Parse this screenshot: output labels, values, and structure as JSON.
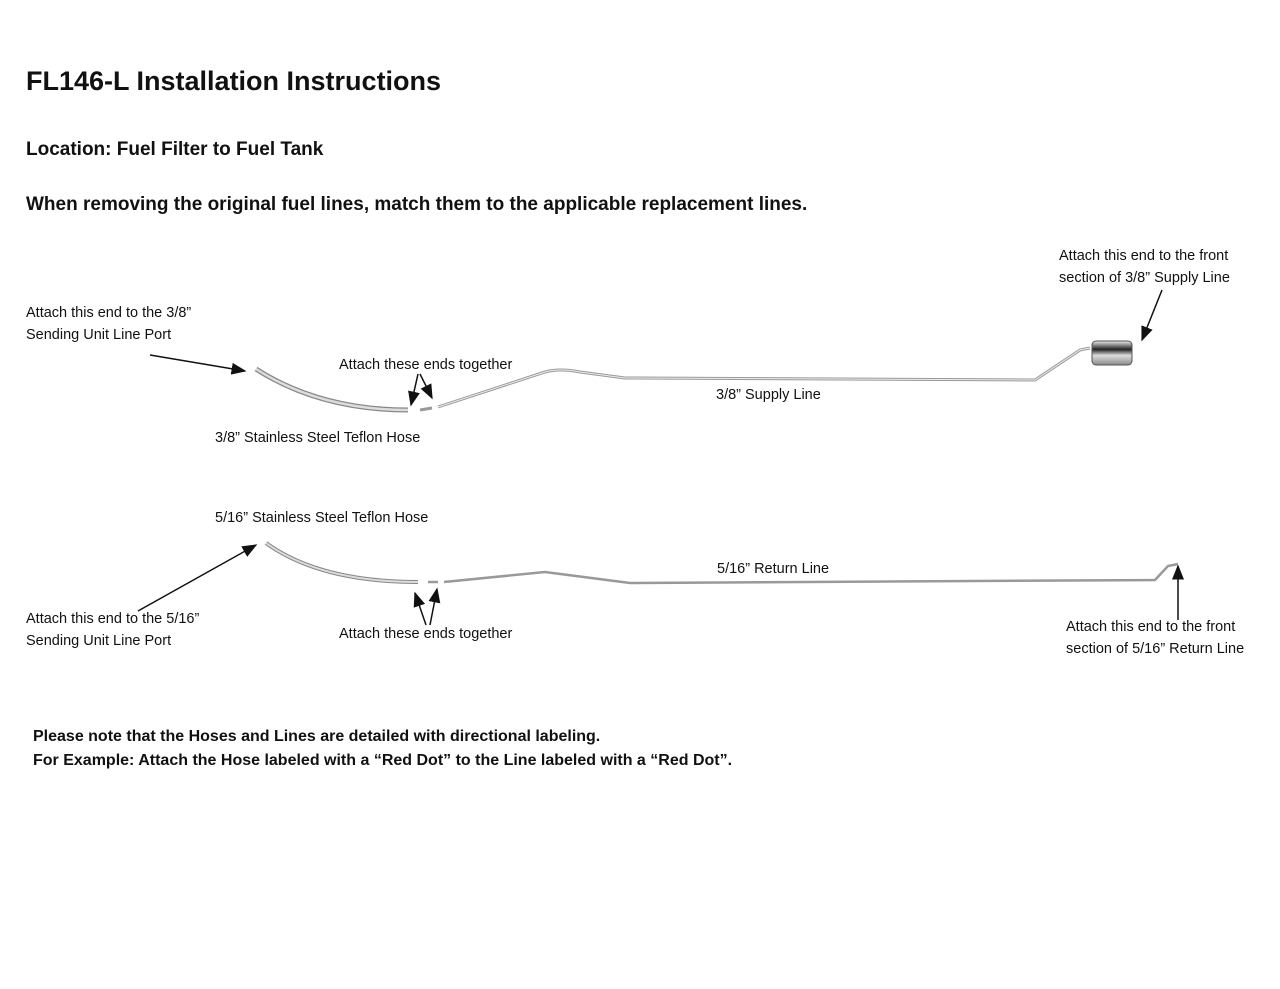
{
  "title": "FL146-L Installation Instructions",
  "location": "Location: Fuel Filter to Fuel Tank",
  "instruction": "When removing the original fuel lines, match them to the applicable replacement lines.",
  "supply": {
    "hose_end_label_1": "Attach this end to the 3/8”",
    "hose_end_label_2": "Sending Unit Line Port",
    "join_label": "Attach  these ends together",
    "hose_label": "3/8” Stainless Steel Teflon Hose",
    "line_label": "3/8” Supply Line",
    "front_label_1": "Attach this end to the front",
    "front_label_2": "section of 3/8” Supply Line"
  },
  "return": {
    "hose_label": "5/16” Stainless Steel Teflon Hose",
    "hose_end_label_1": "Attach this end to the 5/16”",
    "hose_end_label_2": "Sending Unit Line Port",
    "join_label": "Attach these ends together",
    "line_label": "5/16” Return Line",
    "front_label_1": "Attach this end to the front",
    "front_label_2": "section of 5/16” Return Line"
  },
  "notes": {
    "line1": "Please note that the Hoses and Lines are detailed with directional labeling.",
    "line2": "For Example: Attach the Hose labeled with a “Red Dot” to the  Line labeled with a “Red Dot”."
  }
}
